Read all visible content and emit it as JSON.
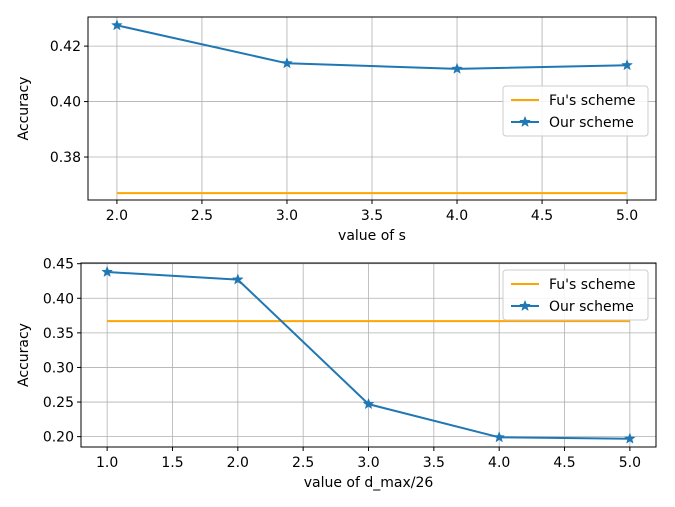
{
  "colors": {
    "fu": "#ffa500",
    "ours": "#1f77b4",
    "grid": "#b0b0b0",
    "axes": "#000000",
    "legend_border": "#cccccc"
  },
  "chart_data": [
    {
      "type": "line",
      "xlabel": "value of s",
      "ylabel": "Accuracy",
      "xlim": [
        1.83,
        5.17
      ],
      "ylim": [
        0.3645,
        0.4305
      ],
      "xticks": [
        2.0,
        2.5,
        3.0,
        3.5,
        4.0,
        4.5,
        5.0
      ],
      "xtick_labels": [
        "2.0",
        "2.5",
        "3.0",
        "3.5",
        "4.0",
        "4.5",
        "5.0"
      ],
      "yticks": [
        0.38,
        0.4,
        0.42
      ],
      "ytick_labels": [
        "0.38",
        "0.40",
        "0.42"
      ],
      "grid": true,
      "legend_position": "center-right",
      "series": [
        {
          "name": "Fu's scheme",
          "x": [
            2,
            3,
            4,
            5
          ],
          "values": [
            0.367,
            0.367,
            0.367,
            0.367
          ],
          "marker": "none",
          "color_key": "fu"
        },
        {
          "name": "Our scheme",
          "x": [
            2,
            3,
            4,
            5
          ],
          "values": [
            0.4275,
            0.4138,
            0.4118,
            0.4131
          ],
          "marker": "star",
          "color_key": "ours"
        }
      ]
    },
    {
      "type": "line",
      "xlabel": "value of d_max/26",
      "ylabel": "Accuracy",
      "xlim": [
        0.8,
        5.2
      ],
      "ylim": [
        0.185,
        0.451
      ],
      "xticks": [
        1.0,
        1.5,
        2.0,
        2.5,
        3.0,
        3.5,
        4.0,
        4.5,
        5.0
      ],
      "xtick_labels": [
        "1.0",
        "1.5",
        "2.0",
        "2.5",
        "3.0",
        "3.5",
        "4.0",
        "4.5",
        "5.0"
      ],
      "yticks": [
        0.2,
        0.25,
        0.3,
        0.35,
        0.4,
        0.45
      ],
      "ytick_labels": [
        "0.20",
        "0.25",
        "0.30",
        "0.35",
        "0.40",
        "0.45"
      ],
      "grid": true,
      "legend_position": "top-right",
      "series": [
        {
          "name": "Fu's scheme",
          "x": [
            1,
            2,
            3,
            4,
            5
          ],
          "values": [
            0.367,
            0.367,
            0.367,
            0.367,
            0.367
          ],
          "marker": "none",
          "color_key": "fu"
        },
        {
          "name": "Our scheme",
          "x": [
            1,
            2,
            3,
            4,
            5
          ],
          "values": [
            0.438,
            0.427,
            0.247,
            0.199,
            0.197
          ],
          "marker": "star",
          "color_key": "ours"
        }
      ]
    }
  ]
}
